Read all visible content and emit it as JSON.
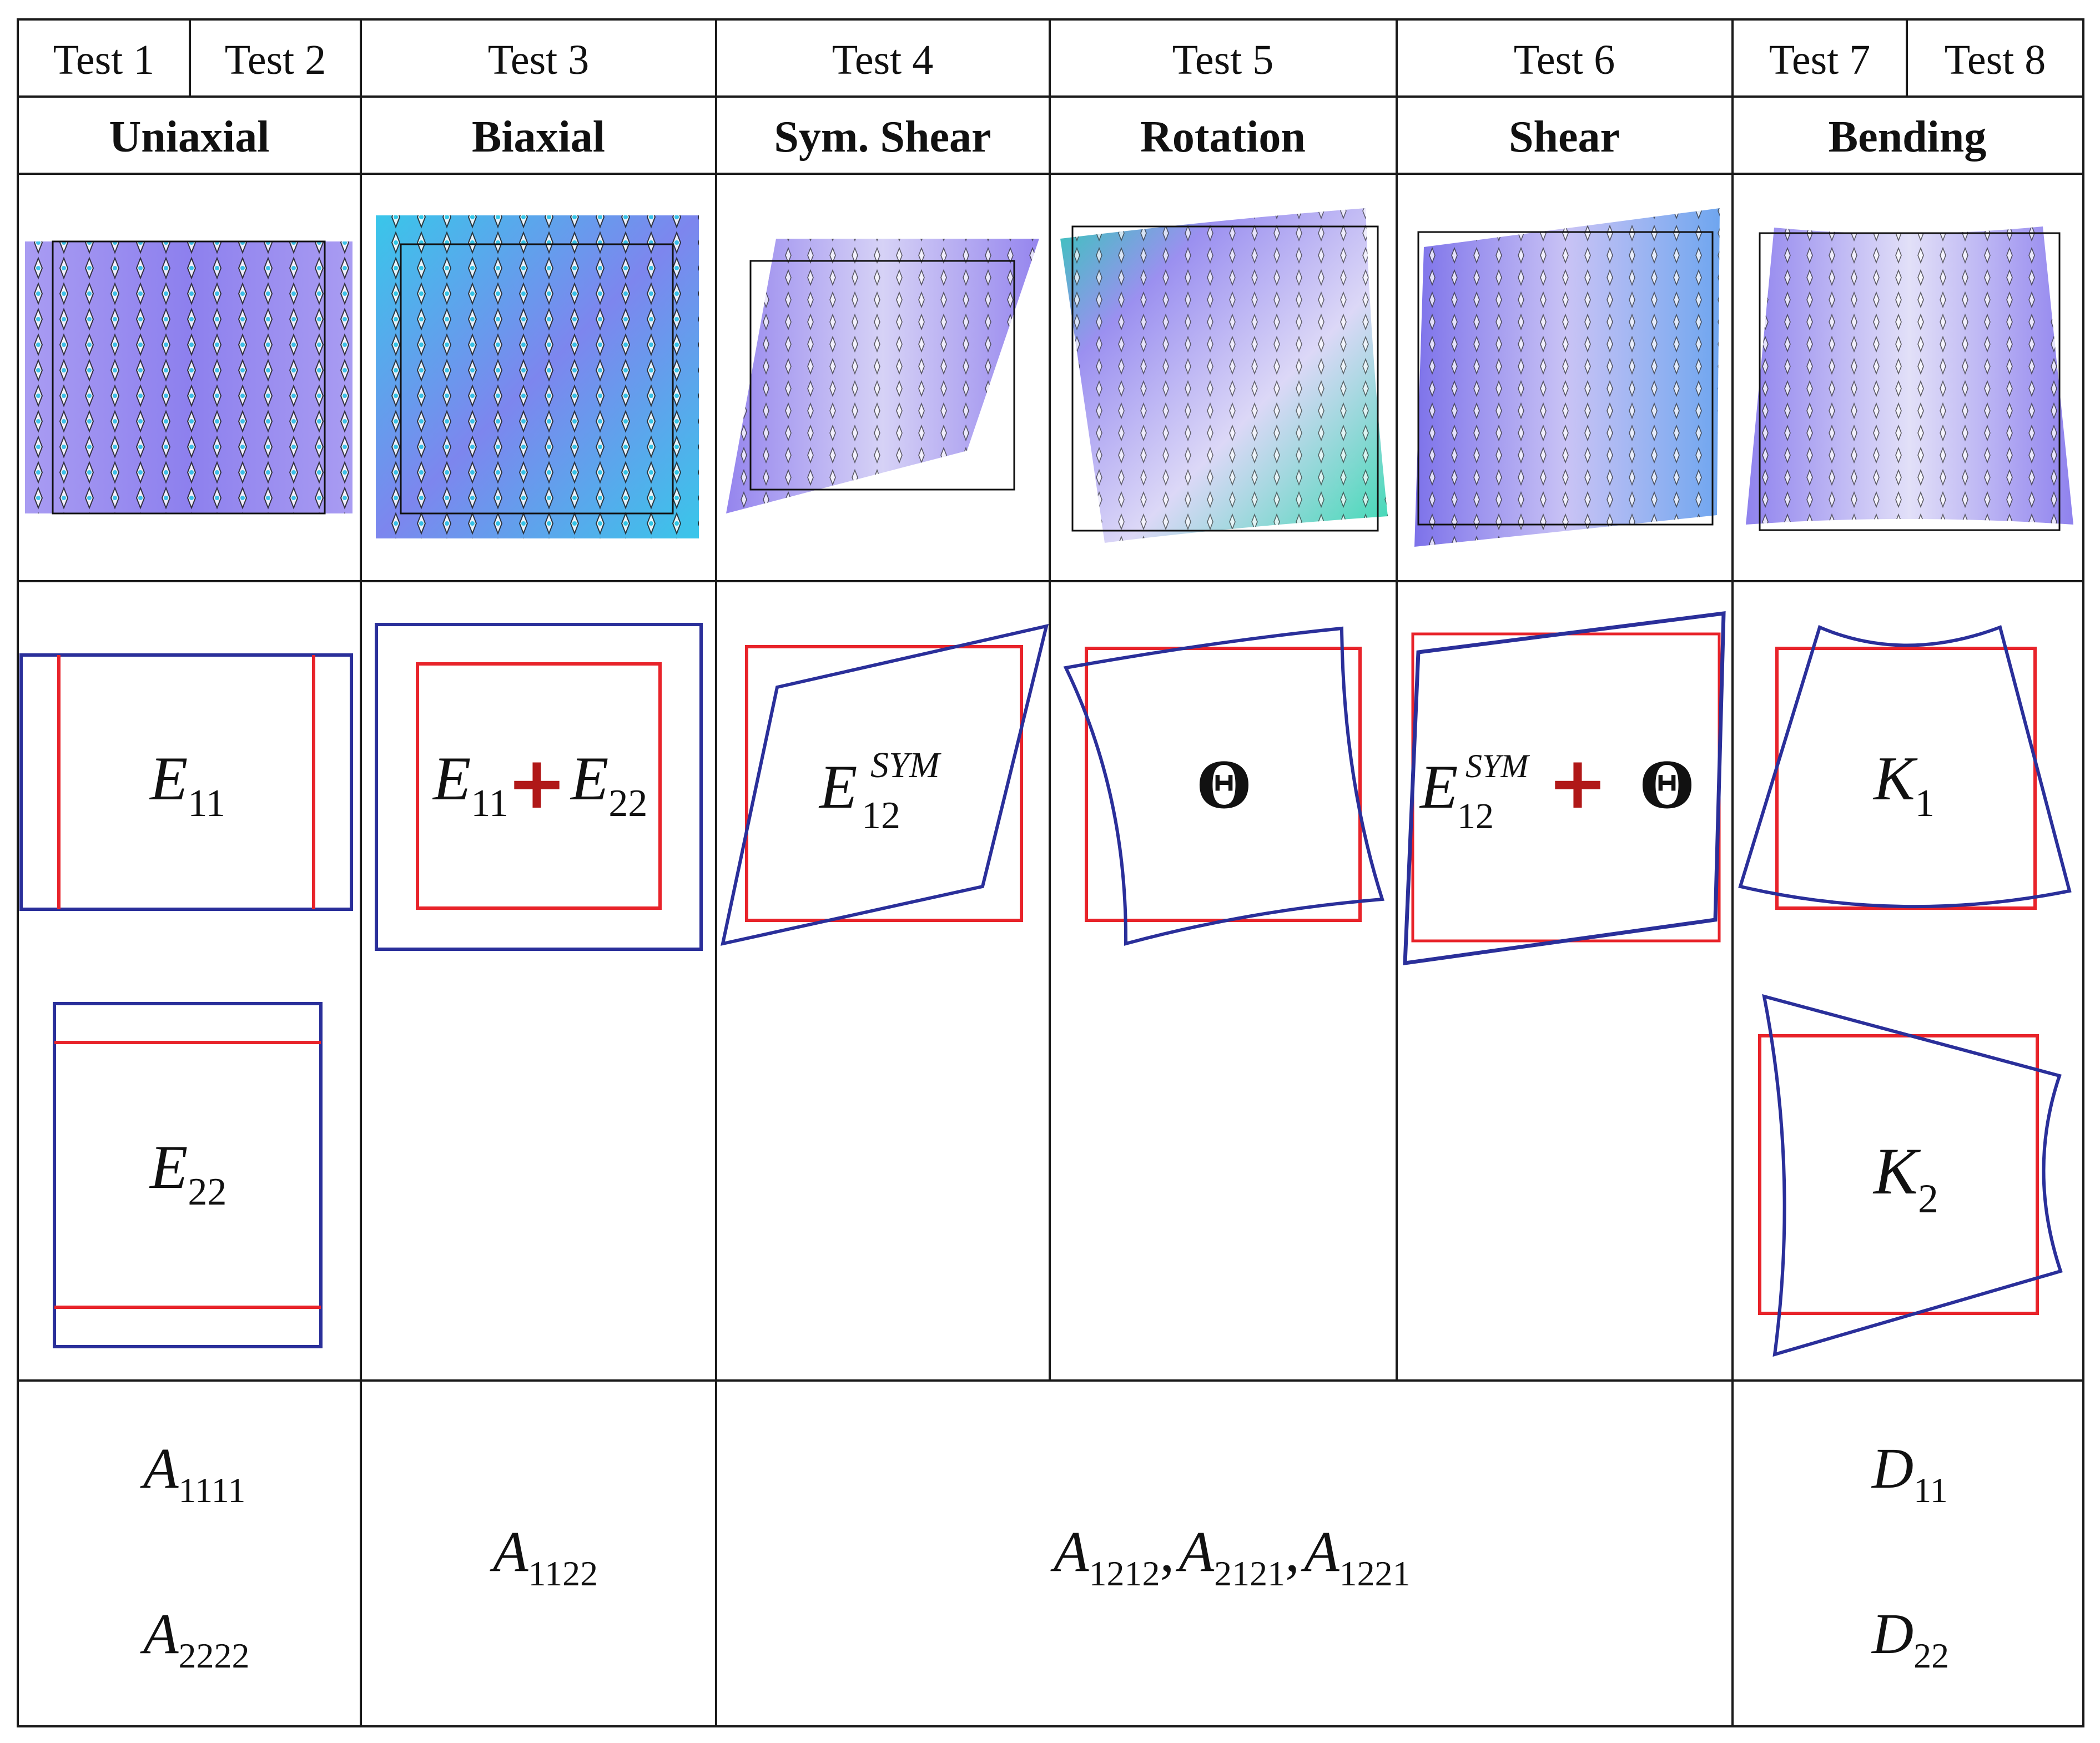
{
  "tests": {
    "t1": "Test 1",
    "t2": "Test 2",
    "t3": "Test 3",
    "t4": "Test 4",
    "t5": "Test 5",
    "t6": "Test 6",
    "t7": "Test 7",
    "t8": "Test 8"
  },
  "modes": {
    "uniaxial": "Uniaxial",
    "biaxial": "Biaxial",
    "sym_shear": "Sym. Shear",
    "rotation": "Rotation",
    "shear": "Shear",
    "bending": "Bending"
  },
  "strain_labels": {
    "E": "E",
    "K": "K",
    "theta": "Θ",
    "plus": "+",
    "sub_11": "11",
    "sub_22": "22",
    "sub_12": "12",
    "sub_1": "1",
    "sub_2": "2",
    "sup_sym": "SYM"
  },
  "coefficients": {
    "A": "A",
    "D": "D",
    "comma": ",",
    "sub_1111": "1111",
    "sub_2222": "2222",
    "sub_1122": "1122",
    "sub_1212": "1212",
    "sub_2121": "2121",
    "sub_1221": "1221",
    "sub_11": "11",
    "sub_22": "22"
  },
  "colors": {
    "reference": "#e8232a",
    "deformed": "#2a2f9a",
    "plus": "#b01818",
    "grid": "#222222",
    "lattice_base": "#9b8ff0",
    "lattice_accent": "#2ec9e6",
    "lattice_green": "#39e0b0"
  }
}
